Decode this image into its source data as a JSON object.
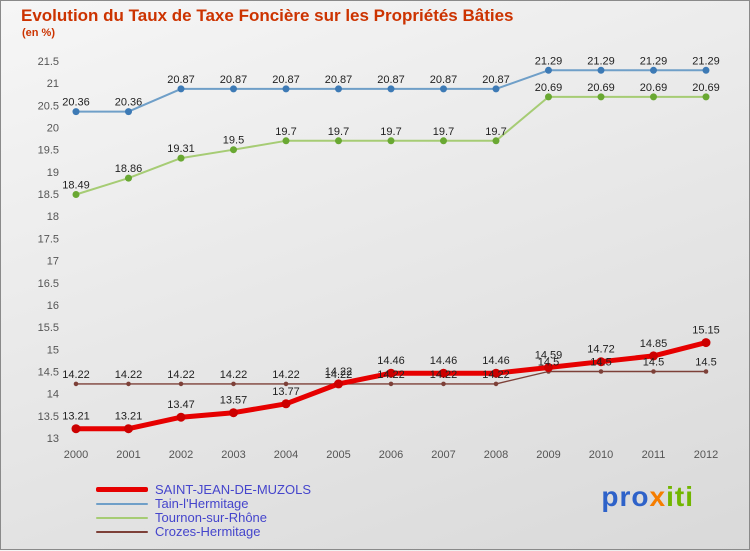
{
  "title": "Evolution du Taux de Taxe Foncière sur les Propriétés Bâties",
  "subtitle": "(en %)",
  "logo": {
    "segments": [
      {
        "text": "pro",
        "color": "#2e62c9"
      },
      {
        "text": "x",
        "color": "#f57d00"
      },
      {
        "text": "iti",
        "color": "#72b600"
      }
    ]
  },
  "chart_data": {
    "type": "line",
    "title": "Evolution du Taux de Taxe Foncière sur les Propriétés Bâties",
    "subtitle": "(en %)",
    "x": [
      2000,
      2001,
      2002,
      2003,
      2004,
      2005,
      2006,
      2007,
      2008,
      2009,
      2010,
      2011,
      2012
    ],
    "ylim": [
      13,
      21.5
    ],
    "ytick_step": 0.5,
    "grid": false,
    "value_labels": true,
    "legend_position": "bottom-left",
    "series": [
      {
        "name": "SAINT-JEAN-DE-MUZOLS",
        "color": "#e60000",
        "marker_color": "#cc0000",
        "line_width": 5,
        "values": [
          13.21,
          13.21,
          13.47,
          13.57,
          13.77,
          14.22,
          14.46,
          14.46,
          14.46,
          14.59,
          14.72,
          14.85,
          15.15
        ]
      },
      {
        "name": "Tain-l'Hermitage",
        "color": "#6f9fc8",
        "marker_color": "#3d7ab5",
        "line_width": 2,
        "values": [
          20.36,
          20.36,
          20.87,
          20.87,
          20.87,
          20.87,
          20.87,
          20.87,
          20.87,
          21.29,
          21.29,
          21.29,
          21.29
        ]
      },
      {
        "name": "Tournon-sur-Rhône",
        "color": "#a6cc74",
        "marker_color": "#69a832",
        "line_width": 2,
        "values": [
          18.49,
          18.86,
          19.31,
          19.5,
          19.7,
          19.7,
          19.7,
          19.7,
          19.7,
          20.69,
          20.69,
          20.69,
          20.69
        ]
      },
      {
        "name": "Crozes-Hermitage",
        "color": "#7d4038",
        "marker_color": "#7d4038",
        "line_width": 1.4,
        "values": [
          14.22,
          14.22,
          14.22,
          14.22,
          14.22,
          14.22,
          14.22,
          14.22,
          14.22,
          14.5,
          14.5,
          14.5,
          14.5
        ]
      }
    ]
  }
}
